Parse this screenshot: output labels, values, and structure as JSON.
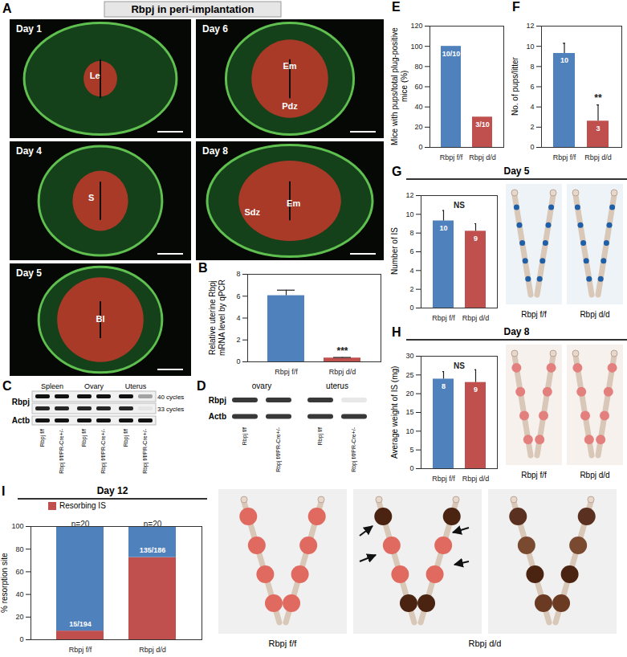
{
  "figure": {
    "A": {
      "panel": "A",
      "title": "Rbpj in peri-implantation",
      "images": [
        {
          "day": "Day 1",
          "labels": [
            "Le"
          ]
        },
        {
          "day": "Day 6",
          "labels": [
            "Em",
            "Pdz"
          ]
        },
        {
          "day": "Day 4",
          "labels": [
            "S"
          ]
        },
        {
          "day": "Day 8",
          "labels": [
            "Sdz",
            "Em"
          ]
        },
        {
          "day": "Day 5",
          "labels": [
            "Bl"
          ]
        }
      ]
    },
    "C": {
      "panel": "C",
      "tissues": [
        "Spleen",
        "Ovary",
        "Uterus"
      ],
      "genes": [
        "Rbpj",
        "Actb"
      ],
      "cycles": [
        "40 cycles",
        "33 cycles"
      ],
      "lanes": [
        "Rbpj f/f",
        "Rbpj f/f/PR-Cre+/-"
      ]
    },
    "D": {
      "panel": "D",
      "tissues": [
        "ovary",
        "uterus"
      ],
      "genes": [
        "Rbpj",
        "Actb"
      ],
      "lanes": [
        "Rbpj f/f",
        "Rbpj f/f/PR-Cre+/-"
      ]
    },
    "G": {
      "image_labels": [
        "Rbpj f/f",
        "Rbpj d/d"
      ]
    },
    "H": {
      "image_labels": [
        "Rbpj f/f",
        "Rbpj d/d"
      ]
    },
    "I": {
      "image_labels": [
        "Rbpj f/f",
        "Rbpj d/d"
      ]
    }
  },
  "chart_data": [
    {
      "panel": "B",
      "type": "bar",
      "y_label": "Relative uterine Rbpj mRNA level by qPCR",
      "categories": [
        "Rbpj f/f",
        "Rbpj d/d"
      ],
      "values": [
        6.05,
        0.35
      ],
      "errors": [
        0.5,
        0.05
      ],
      "colors": [
        "#4f81bd",
        "#c0504d"
      ],
      "significance": [
        null,
        "***"
      ],
      "ylim": [
        0,
        8
      ],
      "yticks": [
        0,
        2,
        4,
        6,
        8
      ]
    },
    {
      "panel": "E",
      "type": "bar",
      "y_label": "Mice with pups/total plug-positive mice (%)",
      "categories": [
        "Rbpj f/f",
        "Rbpj d/d"
      ],
      "values": [
        100,
        30
      ],
      "bar_labels": [
        "10/10",
        "3/10"
      ],
      "colors": [
        "#4f81bd",
        "#c0504d"
      ],
      "ylim": [
        0,
        120
      ],
      "yticks": [
        0,
        20,
        40,
        60,
        80,
        100,
        120
      ]
    },
    {
      "panel": "F",
      "type": "bar",
      "y_label": "No. of pups/litter",
      "categories": [
        "Rbpj f/f",
        "Rbpj d/d"
      ],
      "values": [
        9.3,
        2.6
      ],
      "errors": [
        1.0,
        1.6
      ],
      "bar_labels": [
        "10",
        "3"
      ],
      "significance": [
        null,
        "**"
      ],
      "colors": [
        "#4f81bd",
        "#c0504d"
      ],
      "ylim": [
        0,
        12
      ],
      "yticks": [
        0,
        2,
        4,
        6,
        8,
        10,
        12
      ]
    },
    {
      "panel": "G",
      "type": "bar",
      "title": "Day 5",
      "y_label": "Number of IS",
      "categories": [
        "Rbpj f/f",
        "Rbpj d/d"
      ],
      "values": [
        9.3,
        8.2
      ],
      "errors": [
        1.1,
        0.8
      ],
      "bar_labels": [
        "10",
        "9"
      ],
      "annotation": "NS",
      "colors": [
        "#4f81bd",
        "#c0504d"
      ],
      "ylim": [
        0,
        12
      ],
      "yticks": [
        0,
        2,
        4,
        6,
        8,
        10,
        12
      ]
    },
    {
      "panel": "H",
      "type": "bar",
      "title": "Day 8",
      "y_label": "Average weight of IS (mg)",
      "categories": [
        "Rbpj f/f",
        "Rbpj d/d"
      ],
      "values": [
        23.9,
        23.0
      ],
      "errors": [
        2.0,
        3.4
      ],
      "bar_labels": [
        "8",
        "9"
      ],
      "annotation": "NS",
      "colors": [
        "#4f81bd",
        "#c0504d"
      ],
      "ylim": [
        0,
        30
      ],
      "yticks": [
        0,
        5,
        10,
        15,
        20,
        25,
        30
      ]
    },
    {
      "panel": "I",
      "type": "bar",
      "title": "Day 12",
      "y_label": "% resorption site",
      "stacked": true,
      "legend": "top",
      "categories": [
        "Rbpj f/f",
        "Rbpj d/d"
      ],
      "series": [
        {
          "name": "Resorbing IS",
          "color": "#c0504d",
          "values": [
            7.7,
            72.6
          ]
        },
        {
          "color": "#4f81bd",
          "values": [
            92.3,
            27.4
          ]
        }
      ],
      "bar_labels": [
        "15/194",
        "135/186"
      ],
      "top_labels": [
        "n=20",
        "n=20"
      ],
      "ylim": [
        0,
        100
      ],
      "yticks": [
        0,
        20,
        40,
        60,
        80,
        100
      ]
    }
  ]
}
